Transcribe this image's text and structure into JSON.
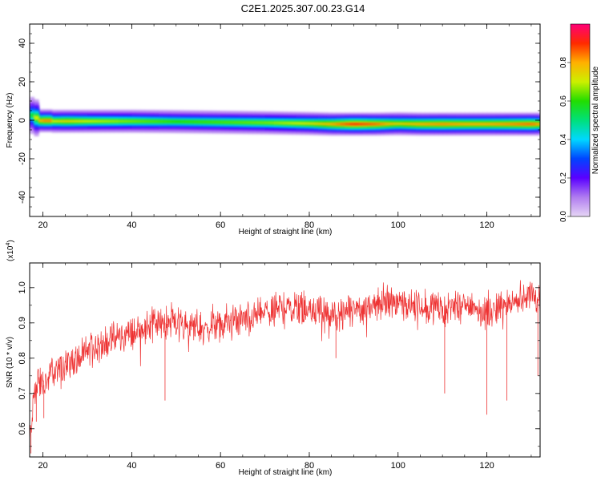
{
  "title": "C2E1.2025.307.00.23.G14",
  "chart_data": [
    {
      "type": "heatmap",
      "xlabel": "Height of straight line (km)",
      "ylabel": "Frequency (Hz)",
      "xlim": [
        17,
        132
      ],
      "ylim": [
        -50,
        50
      ],
      "xticks": [
        20,
        40,
        60,
        80,
        100,
        120
      ],
      "yticks": [
        40,
        20,
        0,
        -20,
        -40
      ],
      "colorbar": {
        "label": "Normalized spectral amplitude",
        "range": [
          0,
          1
        ],
        "ticks": [
          "0.0",
          "0.2",
          "0.4",
          "0.6",
          "0.8"
        ],
        "tick_values": [
          0,
          0.2,
          0.4,
          0.6,
          0.8
        ],
        "colors": [
          "#e6d6f5",
          "#b07cf0",
          "#5a00ff",
          "#0044ff",
          "#00d8ff",
          "#00e07a",
          "#22dd00",
          "#ccf000",
          "#ffb000",
          "#ff2a00",
          "#ff0077"
        ]
      },
      "band": {
        "x": [
          17,
          18,
          19,
          20,
          21,
          22,
          25,
          30,
          40,
          50,
          60,
          70,
          80,
          85,
          90,
          95,
          100,
          105,
          110,
          115,
          120,
          125,
          130,
          132
        ],
        "center_hz": [
          2.5,
          2.5,
          0,
          -0.5,
          0,
          -0.5,
          -0.5,
          -0.5,
          -0.5,
          -0.7,
          -1,
          -1.3,
          -1.7,
          -2,
          -2,
          -2,
          -1.8,
          -2,
          -2,
          -2,
          -2,
          -2,
          -2,
          -2
        ],
        "peak_amplitude": [
          0.6,
          0.5,
          0.9,
          0.7,
          0.95,
          0.7,
          0.75,
          0.7,
          0.65,
          0.6,
          0.62,
          0.65,
          0.72,
          0.8,
          0.9,
          0.85,
          0.75,
          0.8,
          0.82,
          0.8,
          0.8,
          0.82,
          0.85,
          0.8
        ]
      }
    },
    {
      "type": "line",
      "xlabel": "Height of straight line (km)",
      "ylabel": "SNR (10 * v/v)",
      "yscale_label": "(x10",
      "yscale_exp": "4",
      "yscale_close": ")",
      "xlim": [
        17,
        132
      ],
      "ylim": [
        0.52,
        1.07
      ],
      "xticks": [
        20,
        40,
        60,
        80,
        100,
        120
      ],
      "yticks": [
        0.6,
        0.7,
        0.8,
        0.9,
        1.0
      ],
      "yticklabels": [
        "0.6",
        "0.7",
        "0.8",
        "0.9",
        "1.0"
      ],
      "line_color": "#ee3333",
      "trend": {
        "x": [
          17,
          18,
          19,
          20,
          22,
          25,
          28,
          30,
          35,
          40,
          45,
          50,
          55,
          60,
          65,
          70,
          75,
          80,
          85,
          90,
          95,
          100,
          105,
          110,
          115,
          120,
          125,
          128,
          130,
          132
        ],
        "y": [
          0.56,
          0.7,
          0.74,
          0.72,
          0.76,
          0.78,
          0.8,
          0.82,
          0.85,
          0.87,
          0.9,
          0.9,
          0.88,
          0.89,
          0.91,
          0.93,
          0.95,
          0.94,
          0.92,
          0.93,
          0.96,
          0.96,
          0.95,
          0.94,
          0.95,
          0.93,
          0.95,
          0.97,
          0.99,
          0.96
        ]
      },
      "dips": [
        {
          "x": 17.3,
          "y": 0.53
        },
        {
          "x": 18.5,
          "y": 0.62
        },
        {
          "x": 20.2,
          "y": 0.63
        },
        {
          "x": 47.5,
          "y": 0.68
        },
        {
          "x": 86.0,
          "y": 0.8
        },
        {
          "x": 110.5,
          "y": 0.7
        },
        {
          "x": 120.0,
          "y": 0.64
        },
        {
          "x": 124.5,
          "y": 0.68
        },
        {
          "x": 131.5,
          "y": 0.75
        }
      ]
    }
  ]
}
